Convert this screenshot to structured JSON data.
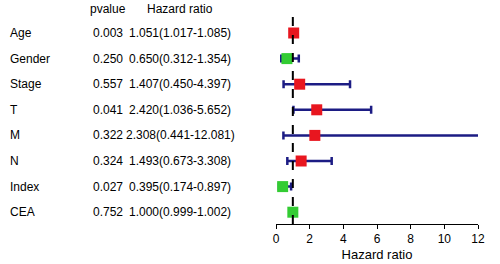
{
  "chart_data": {
    "type": "forest",
    "columns": [
      "pvalue",
      "Hazard ratio"
    ],
    "categories": [
      "Age",
      "Gender",
      "Stage",
      "T",
      "M",
      "N",
      "Index",
      "CEA"
    ],
    "pvalues": [
      "0.003",
      "0.250",
      "0.557",
      "0.041",
      "0.322",
      "0.324",
      "0.027",
      "0.752"
    ],
    "values": [
      1.051,
      0.65,
      1.407,
      2.42,
      2.308,
      1.493,
      0.395,
      1.0
    ],
    "lower": [
      1.017,
      0.312,
      0.45,
      1.036,
      0.441,
      0.673,
      0.174,
      0.999
    ],
    "upper": [
      1.085,
      1.354,
      4.397,
      5.652,
      12.081,
      3.308,
      0.897,
      1.002
    ],
    "value_labels": [
      "1.051(1.017-1.085)",
      "0.650(0.312-1.354)",
      "1.407(0.450-4.397)",
      "2.420(1.036-5.652)",
      "2.308(0.441-12.081)",
      "1.493(0.673-3.308)",
      "0.395(0.174-0.897)",
      "1.000(0.999-1.002)"
    ],
    "colors": [
      "#e8161f",
      "#33cc33",
      "#e8161f",
      "#e8161f",
      "#e8161f",
      "#e8161f",
      "#33cc33",
      "#33cc33"
    ],
    "marker": "square",
    "reference_line": 1,
    "line_style": "dashed",
    "x_label": "Hazard ratio",
    "xlim": [
      0,
      12
    ],
    "xticks": [
      0,
      2,
      4,
      6,
      8,
      10,
      12
    ]
  }
}
